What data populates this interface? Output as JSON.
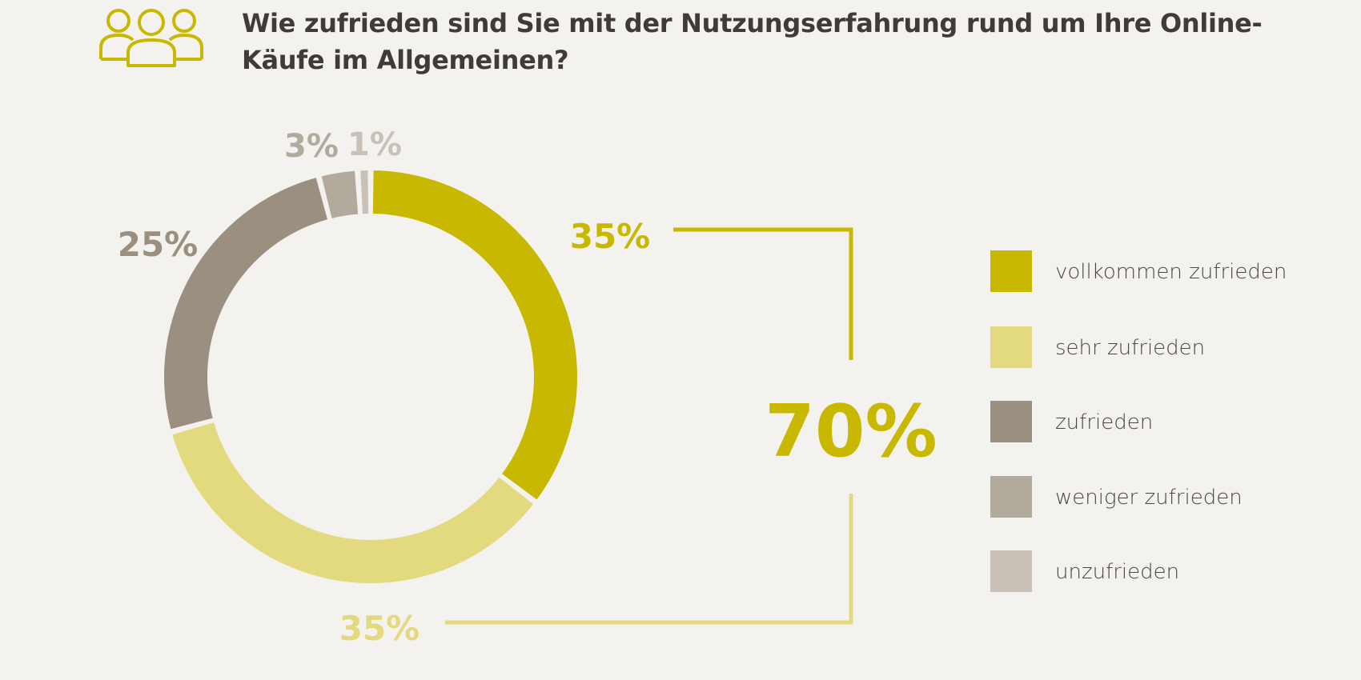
{
  "header": {
    "title_line1": "Wie zufrieden sind Sie mit der Nutzungserfahrung rund um Ihre Online-",
    "title_line2": "Käufe im Allgemeinen?",
    "icon": "people-group-icon"
  },
  "colors": {
    "accent": "#c8b800",
    "light_accent": "#e3d97e",
    "dark_gray": "#9b8f80",
    "mid_gray": "#b3aa9e",
    "light_gray": "#c9c1b7",
    "background": "#f4f2ef"
  },
  "chart_data": {
    "type": "pie",
    "variant": "donut",
    "categories": [
      "vollkommen zufrieden",
      "sehr zufrieden",
      "zufrieden",
      "weniger zufrieden",
      "unzufrieden"
    ],
    "values": [
      35,
      35,
      25,
      3,
      1
    ],
    "value_labels": [
      "35%",
      "35%",
      "25%",
      "3%",
      "1%"
    ],
    "colors": [
      "#c8b800",
      "#e3d97e",
      "#9b8f80",
      "#b3aa9e",
      "#c9c1b7"
    ],
    "combined_label": "70%",
    "legend_position": "right"
  }
}
